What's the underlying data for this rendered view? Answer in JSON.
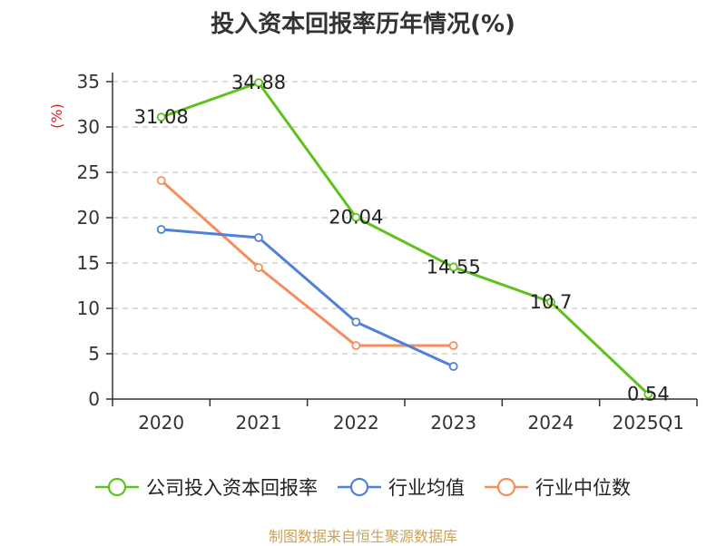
{
  "title": "投入资本回报率历年情况(%)",
  "source": "制图数据来自恒生聚源数据库",
  "colors": {
    "series_0": "#5ec21e",
    "series_1": "#4f81d8",
    "series_2": "#f58e5a",
    "grid": "#c8c8c8",
    "axis": "#333333",
    "ylabel": "#e02020",
    "source": "#c8a35a"
  },
  "chart_data": {
    "type": "line",
    "title": "投入资本回报率历年情况(%)",
    "ylabel": "(%)",
    "xlabel": "",
    "categories": [
      "2020",
      "2021",
      "2022",
      "2023",
      "2024",
      "2025Q1"
    ],
    "ylim": [
      0,
      35
    ],
    "yticks": [
      0,
      5,
      10,
      15,
      20,
      25,
      30,
      35
    ],
    "grid": true,
    "legend_position": "bottom",
    "series": [
      {
        "name": "公司投入资本回报率",
        "values": [
          31.08,
          34.88,
          20.04,
          14.55,
          10.7,
          0.54
        ],
        "data_labels": [
          "31.08",
          "34.88",
          "20.04",
          "14.55",
          "10.7",
          "0.54"
        ]
      },
      {
        "name": "行业均值",
        "values": [
          18.7,
          17.8,
          8.5,
          3.6,
          null,
          null
        ]
      },
      {
        "name": "行业中位数",
        "values": [
          24.1,
          14.5,
          5.9,
          5.9,
          null,
          null
        ]
      }
    ]
  }
}
